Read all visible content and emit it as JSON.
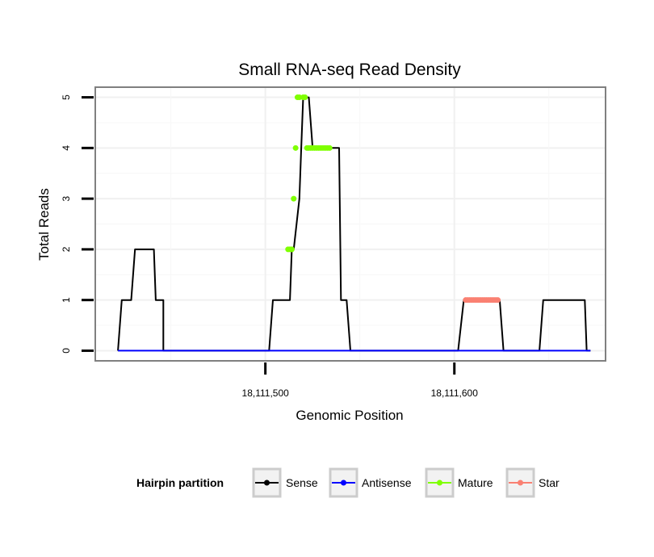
{
  "chart_data": {
    "type": "line",
    "title": "Small RNA-seq Read Density",
    "xlabel": "Genomic Position",
    "ylabel": "Total Reads",
    "xlim": [
      18111410,
      18111680
    ],
    "ylim": [
      -0.2,
      5.2
    ],
    "x_ticks": [
      18111500,
      18111600
    ],
    "x_tick_labels": [
      "18,111,500",
      "18,111,600"
    ],
    "y_ticks": [
      0,
      1,
      2,
      3,
      4,
      5
    ],
    "y_tick_labels": [
      "0",
      "1",
      "2",
      "3",
      "4",
      "5"
    ],
    "grid": true,
    "legend": {
      "title": "Hairpin partition",
      "position": "bottom",
      "entries": [
        {
          "name": "Sense",
          "color": "#000000"
        },
        {
          "name": "Antisense",
          "color": "#0000ff"
        },
        {
          "name": "Mature",
          "color": "#7fff00"
        },
        {
          "name": "Star",
          "color": "#fa8072"
        }
      ]
    },
    "series": [
      {
        "name": "Sense",
        "color": "#000000",
        "style": "line",
        "x": [
          18111422,
          18111424,
          18111429,
          18111431,
          18111434,
          18111435,
          18111435,
          18111436,
          18111441,
          18111442,
          18111446,
          18111446,
          18111481,
          18111502,
          18111504,
          18111513,
          18111514,
          18111515,
          18111518,
          18111519,
          18111520,
          18111522,
          18111523,
          18111525,
          18111526,
          18111530,
          18111533,
          18111534,
          18111539,
          18111540,
          18111543,
          18111545,
          18111602,
          18111605,
          18111623,
          18111624,
          18111626,
          18111645,
          18111647,
          18111669,
          18111670,
          18111672
        ],
        "values": [
          0,
          1,
          1,
          2,
          2,
          2,
          2,
          2,
          2,
          1,
          1,
          0,
          0,
          0,
          1,
          1,
          2,
          2,
          3,
          4,
          5,
          5,
          5,
          4,
          4,
          4,
          4,
          4,
          4,
          1,
          1,
          0,
          0,
          1,
          1,
          1,
          0,
          0,
          1,
          1,
          0,
          0
        ]
      },
      {
        "name": "Antisense",
        "color": "#0000ff",
        "style": "line",
        "x": [
          18111422,
          18111672
        ],
        "values": [
          0,
          0
        ]
      },
      {
        "name": "Mature",
        "color": "#7fff00",
        "style": "points",
        "x": [
          18111512,
          18111513,
          18111514,
          18111515,
          18111516,
          18111517,
          18111518,
          18111520,
          18111521,
          18111522,
          18111523,
          18111524,
          18111525,
          18111526,
          18111527,
          18111528,
          18111529,
          18111530,
          18111531,
          18111532,
          18111533,
          18111534
        ],
        "values": [
          2,
          2,
          2,
          3,
          4,
          5,
          5,
          5,
          5,
          4,
          4,
          4,
          4,
          4,
          4,
          4,
          4,
          4,
          4,
          4,
          4,
          4
        ]
      },
      {
        "name": "Star",
        "color": "#fa8072",
        "style": "points",
        "x": [
          18111606,
          18111607,
          18111608,
          18111609,
          18111610,
          18111611,
          18111612,
          18111613,
          18111614,
          18111615,
          18111616,
          18111617,
          18111618,
          18111619,
          18111620,
          18111621,
          18111622,
          18111623
        ],
        "values": [
          1,
          1,
          1,
          1,
          1,
          1,
          1,
          1,
          1,
          1,
          1,
          1,
          1,
          1,
          1,
          1,
          1,
          1
        ]
      }
    ]
  }
}
